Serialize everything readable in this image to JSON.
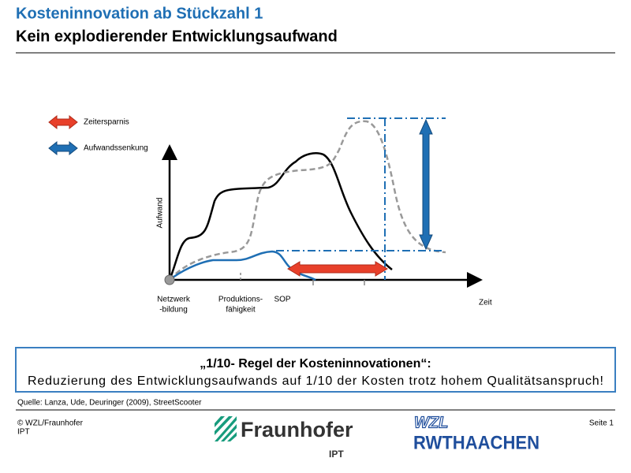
{
  "header": {
    "title": "Kosteninnovation ab Stückzahl 1",
    "subtitle": "Kein explodierender Entwicklungsaufwand"
  },
  "legend": [
    {
      "label": "Zeitersparnis"
    },
    {
      "label": "Aufwandssenkung"
    }
  ],
  "diagram": {
    "y_label": "Aufwand",
    "x_label": "Zeit",
    "milestones": [
      [
        "Netzwerk",
        "-bildung"
      ],
      [
        "Produktions-",
        "fähigkeit"
      ],
      [
        "SOP"
      ]
    ]
  },
  "callout": {
    "title": "„1/10- Regel der Kosteninnovationen“:",
    "text": "Reduzierung des Entwicklungsaufwands auf 1/10 der Kosten trotz hohem Qualitätsanspruch!"
  },
  "source": "Quelle: Lanza, Ude, Deuringer (2009), StreetScooter",
  "footer": {
    "copyright": [
      "© WZL/Fraunhofer",
      "IPT"
    ],
    "fraunhofer": "Fraunhofer",
    "fraunhofer_unit": "IPT",
    "rwth": [
      "WZL",
      "RWTHAACHEN"
    ],
    "page": "Seite 1"
  }
}
